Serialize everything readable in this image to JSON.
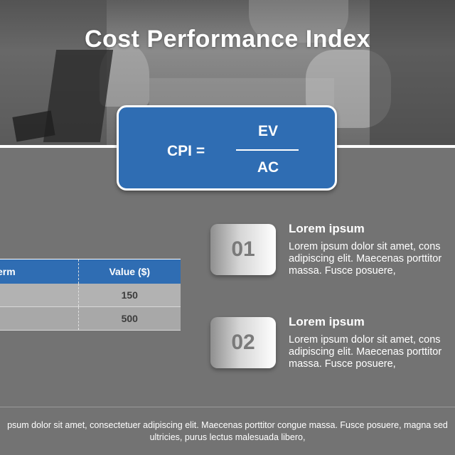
{
  "slide": {
    "title": "Cost Performance Index"
  },
  "formula": {
    "label": "CPI =",
    "numerator": "EV",
    "denominator": "AC"
  },
  "table": {
    "headers": [
      "erm",
      "Value ($)"
    ],
    "rows": [
      [
        "",
        "150"
      ],
      [
        "",
        "500"
      ]
    ]
  },
  "points": [
    {
      "number": "01",
      "heading": "Lorem ipsum",
      "lines": [
        "Lorem ipsum dolor sit amet, cons",
        "adipiscing elit. Maecenas porttitor",
        "massa. Fusce posuere,"
      ]
    },
    {
      "number": "02",
      "heading": "Lorem ipsum",
      "lines": [
        "Lorem ipsum dolor sit amet, cons",
        "adipiscing elit. Maecenas porttitor",
        "massa. Fusce posuere,"
      ]
    }
  ],
  "footer": {
    "line1": "psum dolor sit amet, consectetuer adipiscing elit. Maecenas porttitor congue massa. Fusce posuere, magna sed",
    "line2": "ultricies, purus lectus malesuada libero,"
  },
  "colors": {
    "accent": "#2f6db3",
    "background": "#737373"
  }
}
